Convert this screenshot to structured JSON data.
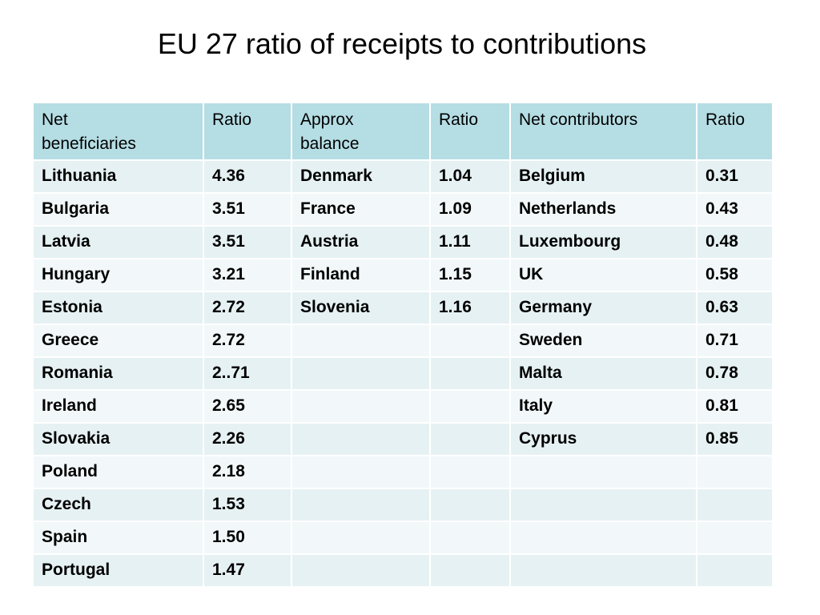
{
  "title": "EU 27 ratio of receipts to contributions",
  "table": {
    "headers": [
      "Net\nbeneficiaries",
      "Ratio",
      "Approx\nbalance",
      "Ratio",
      "Net contributors",
      "Ratio"
    ],
    "rows": [
      [
        "Lithuania",
        "4.36",
        "Denmark",
        "1.04",
        "Belgium",
        "0.31"
      ],
      [
        "Bulgaria",
        "3.51",
        "France",
        "1.09",
        "Netherlands",
        "0.43"
      ],
      [
        "Latvia",
        "3.51",
        "Austria",
        "1.11",
        "Luxembourg",
        "0.48"
      ],
      [
        "Hungary",
        "3.21",
        "Finland",
        "1.15",
        "UK",
        "0.58"
      ],
      [
        "Estonia",
        "2.72",
        "Slovenia",
        "1.16",
        "Germany",
        "0.63"
      ],
      [
        "Greece",
        "2.72",
        "",
        "",
        "Sweden",
        "0.71"
      ],
      [
        "Romania",
        "2..71",
        "",
        "",
        "Malta",
        "0.78"
      ],
      [
        "Ireland",
        "2.65",
        "",
        "",
        "Italy",
        "0.81"
      ],
      [
        "Slovakia",
        "2.26",
        "",
        "",
        "Cyprus",
        "0.85"
      ],
      [
        "Poland",
        "2.18",
        "",
        "",
        "",
        ""
      ],
      [
        "Czech",
        "1.53",
        "",
        "",
        "",
        ""
      ],
      [
        "Spain",
        "1.50",
        "",
        "",
        "",
        ""
      ],
      [
        "Portugal",
        "1.47",
        "",
        "",
        "",
        ""
      ]
    ]
  }
}
